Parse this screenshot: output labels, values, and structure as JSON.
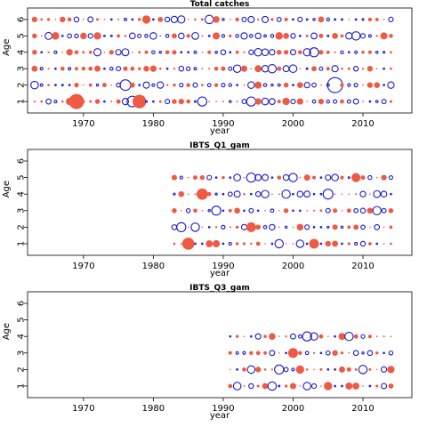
{
  "colors": {
    "positive": "#ee5a43",
    "negative": "#1a1acc",
    "frame": "#000000"
  },
  "chart_data": [
    {
      "type": "scatter",
      "title": "Total catches",
      "xlabel": "year",
      "ylabel": "Age",
      "xlim": [
        1962,
        2017
      ],
      "ylim": [
        0.3,
        6.7
      ],
      "xticks": [
        1970,
        1980,
        1990,
        2000,
        2010
      ],
      "yticks": [
        1,
        2,
        3,
        4,
        5,
        6
      ],
      "seed": 11,
      "year_range": [
        1963,
        2014
      ],
      "ages": [
        1,
        2,
        3,
        4,
        5,
        6
      ],
      "highlights": [
        {
          "year": 1969,
          "age": 1,
          "size": 1.0,
          "sign": 1
        },
        {
          "year": 1978,
          "age": 1,
          "size": 0.9,
          "sign": 1
        },
        {
          "year": 2006,
          "age": 2,
          "size": 1.0,
          "sign": -1
        },
        {
          "year": 1963,
          "age": 2,
          "size": 0.5,
          "sign": -1
        },
        {
          "year": 1976,
          "age": 2,
          "size": 0.7,
          "sign": -1
        },
        {
          "year": 1977,
          "age": 1,
          "size": 0.7,
          "sign": -1
        },
        {
          "year": 1987,
          "age": 1,
          "size": 0.6,
          "sign": -1
        },
        {
          "year": 1979,
          "age": 6,
          "size": 0.55,
          "sign": 1
        },
        {
          "year": 1988,
          "age": 6,
          "size": 0.55,
          "sign": -1
        },
        {
          "year": 2003,
          "age": 4,
          "size": 0.6,
          "sign": -1
        },
        {
          "year": 2009,
          "age": 5,
          "size": 0.55,
          "sign": -1
        },
        {
          "year": 1994,
          "age": 1,
          "size": 0.6,
          "sign": -1
        },
        {
          "year": 1997,
          "age": 3,
          "size": 0.55,
          "sign": -1
        },
        {
          "year": 2000,
          "age": 3,
          "size": 0.5,
          "sign": -1
        },
        {
          "year": 1963,
          "age": 3,
          "size": 0.4,
          "sign": 1
        }
      ]
    },
    {
      "type": "scatter",
      "title": "IBTS_Q1_gam",
      "xlabel": "year",
      "ylabel": "Age",
      "xlim": [
        1962,
        2017
      ],
      "ylim": [
        0.3,
        6.7
      ],
      "xticks": [
        1970,
        1980,
        1990,
        2000,
        2010
      ],
      "yticks": [
        1,
        2,
        3,
        4,
        5,
        6
      ],
      "seed": 23,
      "year_range": [
        1983,
        2014
      ],
      "ages": [
        1,
        2,
        3,
        4,
        5
      ],
      "highlights": [
        {
          "year": 1985,
          "age": 1,
          "size": 0.8,
          "sign": 1
        },
        {
          "year": 1987,
          "age": 4,
          "size": 0.75,
          "sign": 1
        },
        {
          "year": 1984,
          "age": 2,
          "size": 0.6,
          "sign": -1
        },
        {
          "year": 1986,
          "age": 2,
          "size": 0.55,
          "sign": -1
        },
        {
          "year": 1989,
          "age": 3,
          "size": 0.6,
          "sign": -1
        },
        {
          "year": 1994,
          "age": 2,
          "size": 0.65,
          "sign": 1
        },
        {
          "year": 1994,
          "age": 5,
          "size": 0.6,
          "sign": -1
        },
        {
          "year": 1999,
          "age": 4,
          "size": 0.55,
          "sign": -1
        },
        {
          "year": 2003,
          "age": 1,
          "size": 0.65,
          "sign": 1
        },
        {
          "year": 2005,
          "age": 4,
          "size": 0.65,
          "sign": -1
        },
        {
          "year": 2009,
          "age": 5,
          "size": 0.6,
          "sign": 1
        },
        {
          "year": 2012,
          "age": 3,
          "size": 0.55,
          "sign": -1
        },
        {
          "year": 1998,
          "age": 1,
          "size": 0.55,
          "sign": -1
        },
        {
          "year": 2000,
          "age": 5,
          "size": 0.55,
          "sign": -1
        }
      ]
    },
    {
      "type": "scatter",
      "title": "IBTS_Q3_gam",
      "xlabel": "year",
      "ylabel": "Age",
      "xlim": [
        1962,
        2017
      ],
      "ylim": [
        0.3,
        6.7
      ],
      "xticks": [
        1970,
        1980,
        1990,
        2000,
        2010
      ],
      "yticks": [
        1,
        2,
        3,
        4,
        5,
        6
      ],
      "seed": 37,
      "year_range": [
        1991,
        2014
      ],
      "ages": [
        1,
        2,
        3,
        4
      ],
      "highlights": [
        {
          "year": 2000,
          "age": 3,
          "size": 0.65,
          "sign": 1
        },
        {
          "year": 2002,
          "age": 4,
          "size": 0.6,
          "sign": -1
        },
        {
          "year": 1998,
          "age": 2,
          "size": 0.6,
          "sign": -1
        },
        {
          "year": 2001,
          "age": 2,
          "size": 0.55,
          "sign": 1
        },
        {
          "year": 1997,
          "age": 1,
          "size": 0.55,
          "sign": -1
        },
        {
          "year": 2008,
          "age": 4,
          "size": 0.55,
          "sign": -1
        },
        {
          "year": 2010,
          "age": 2,
          "size": 0.55,
          "sign": -1
        },
        {
          "year": 2005,
          "age": 1,
          "size": 0.55,
          "sign": 1
        },
        {
          "year": 1992,
          "age": 1,
          "size": 0.5,
          "sign": -1
        },
        {
          "year": 1994,
          "age": 2,
          "size": 0.5,
          "sign": -1
        }
      ]
    }
  ]
}
